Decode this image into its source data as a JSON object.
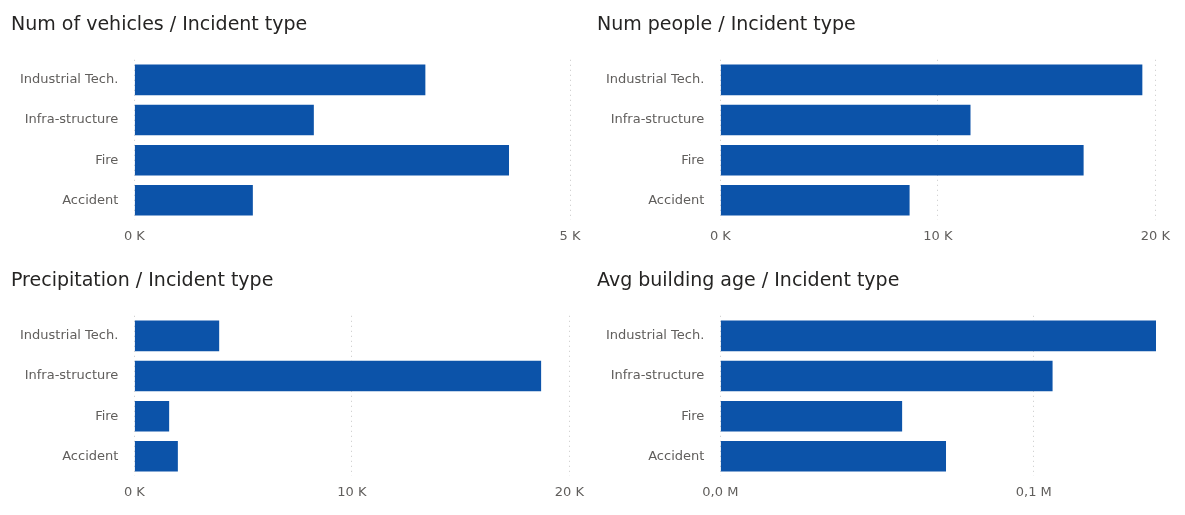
{
  "chart_data": [
    {
      "type": "bar",
      "orientation": "horizontal",
      "title": "Num of vehicles / Incident type",
      "categories": [
        "Industrial Tech.",
        "Infra-structure",
        "Fire",
        "Accident"
      ],
      "values": [
        3.34,
        2.06,
        4.3,
        1.36
      ],
      "color": "#0c53a9",
      "xlim": [
        0,
        5
      ],
      "xticks": [
        {
          "value": 0,
          "label": "0 K"
        },
        {
          "value": 5,
          "label": "5 K"
        }
      ],
      "grid": "x"
    },
    {
      "type": "bar",
      "orientation": "horizontal",
      "title": "Num people / Incident type",
      "categories": [
        "Industrial Tech.",
        "Infra-structure",
        "Fire",
        "Accident"
      ],
      "values": [
        19.4,
        11.5,
        16.7,
        8.7
      ],
      "color": "#0c53a9",
      "xlim": [
        0,
        20
      ],
      "xticks": [
        {
          "value": 0,
          "label": "0 K"
        },
        {
          "value": 10,
          "label": "10 K"
        },
        {
          "value": 20,
          "label": "20 K"
        }
      ],
      "grid": "x"
    },
    {
      "type": "bar",
      "orientation": "horizontal",
      "title": "Precipitation / Incident type",
      "categories": [
        "Industrial Tech.",
        "Infra-structure",
        "Fire",
        "Accident"
      ],
      "values": [
        3.9,
        18.7,
        1.6,
        2.0
      ],
      "color": "#0c53a9",
      "xlim": [
        0,
        20
      ],
      "xticks": [
        {
          "value": 0,
          "label": "0 K"
        },
        {
          "value": 10,
          "label": "10 K"
        },
        {
          "value": 20,
          "label": "20 K"
        }
      ],
      "grid": "x"
    },
    {
      "type": "bar",
      "orientation": "horizontal",
      "title": "Avg building age / Incident type",
      "categories": [
        "Industrial Tech.",
        "Infra-structure",
        "Fire",
        "Accident"
      ],
      "values": [
        0.139,
        0.106,
        0.058,
        0.072
      ],
      "color": "#0c53a9",
      "xlim": [
        0,
        0.139
      ],
      "xticks": [
        {
          "value": 0,
          "label": "0,0 M"
        },
        {
          "value": 0.1,
          "label": "0,1 M"
        }
      ],
      "grid": "x"
    }
  ]
}
